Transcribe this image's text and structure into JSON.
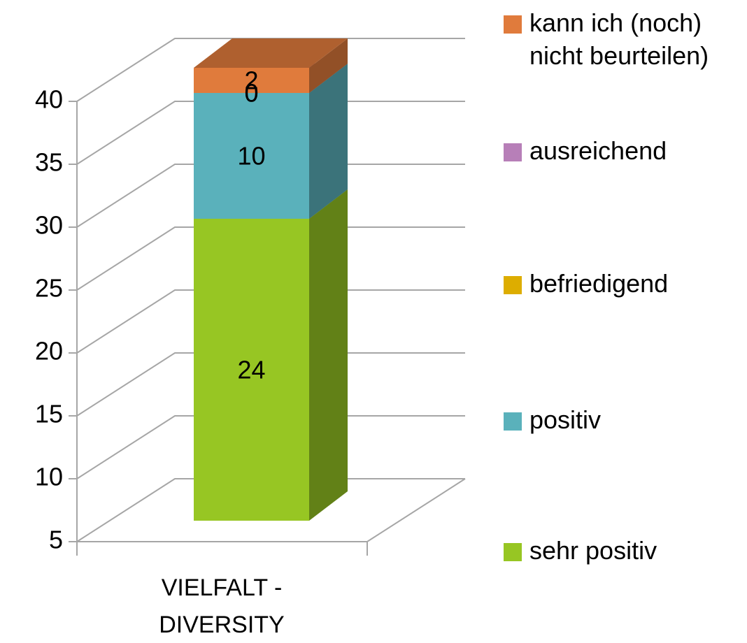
{
  "chart_data": {
    "type": "bar3d_stacked",
    "categories": [
      "VIELFALT - DIVERSITY"
    ],
    "series": [
      {
        "name": "sehr positiv",
        "color": "#97c623",
        "values": [
          24
        ]
      },
      {
        "name": "positiv",
        "color": "#5ab1bb",
        "values": [
          10
        ]
      },
      {
        "name": "befriedigend",
        "color": "#ddad00",
        "values": [
          0
        ]
      },
      {
        "name": "ausreichend",
        "color": "#b77fb8",
        "values": [
          0
        ]
      },
      {
        "name": "kann ich (noch) nicht beurteilen)",
        "color": "#e07b3c",
        "values": [
          2
        ]
      }
    ],
    "ylim": [
      5,
      40
    ],
    "yticks": [
      5,
      10,
      15,
      20,
      25,
      30,
      35,
      40
    ],
    "grid": true,
    "legend": "right"
  }
}
